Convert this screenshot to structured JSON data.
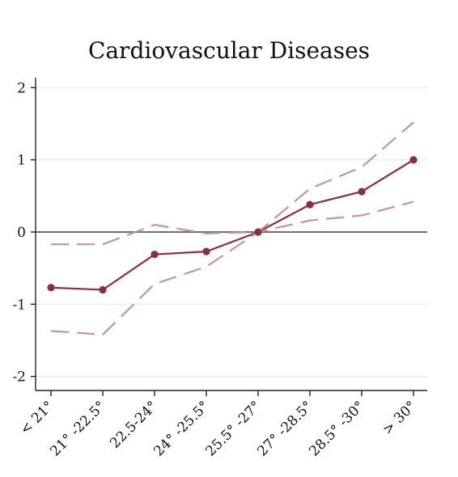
{
  "chart_data": {
    "type": "line",
    "title": "Cardiovascular Diseases",
    "xlabel": "",
    "ylabel": "",
    "categories": [
      "< 21°",
      "21° -22.5°",
      "22.5-24°",
      "24° -25.5°",
      "25.5° -27°",
      "27° -28.5°",
      "28.5° -30°",
      "> 30°"
    ],
    "yticks": [
      "2",
      "1",
      "0",
      "-1",
      "-2"
    ],
    "ylim": [
      -2.2,
      2.2
    ],
    "grid": true,
    "reference_line": 0,
    "series": [
      {
        "role": "estimate",
        "values": [
          -0.77,
          -0.8,
          -0.31,
          -0.27,
          0.0,
          0.38,
          0.56,
          1.0
        ]
      },
      {
        "role": "upper-ci",
        "values": [
          -0.17,
          -0.17,
          0.1,
          -0.02,
          0.0,
          0.6,
          0.9,
          1.52
        ]
      },
      {
        "role": "lower-ci",
        "values": [
          -1.37,
          -1.42,
          -0.72,
          -0.48,
          0.0,
          0.16,
          0.23,
          0.42
        ]
      }
    ],
    "colors": {
      "estimate": "#8b2f3a",
      "ci": "#c4959b",
      "zero_line": "#6e6e6e",
      "grid": "#e7eff1",
      "axis": "#222222"
    }
  }
}
